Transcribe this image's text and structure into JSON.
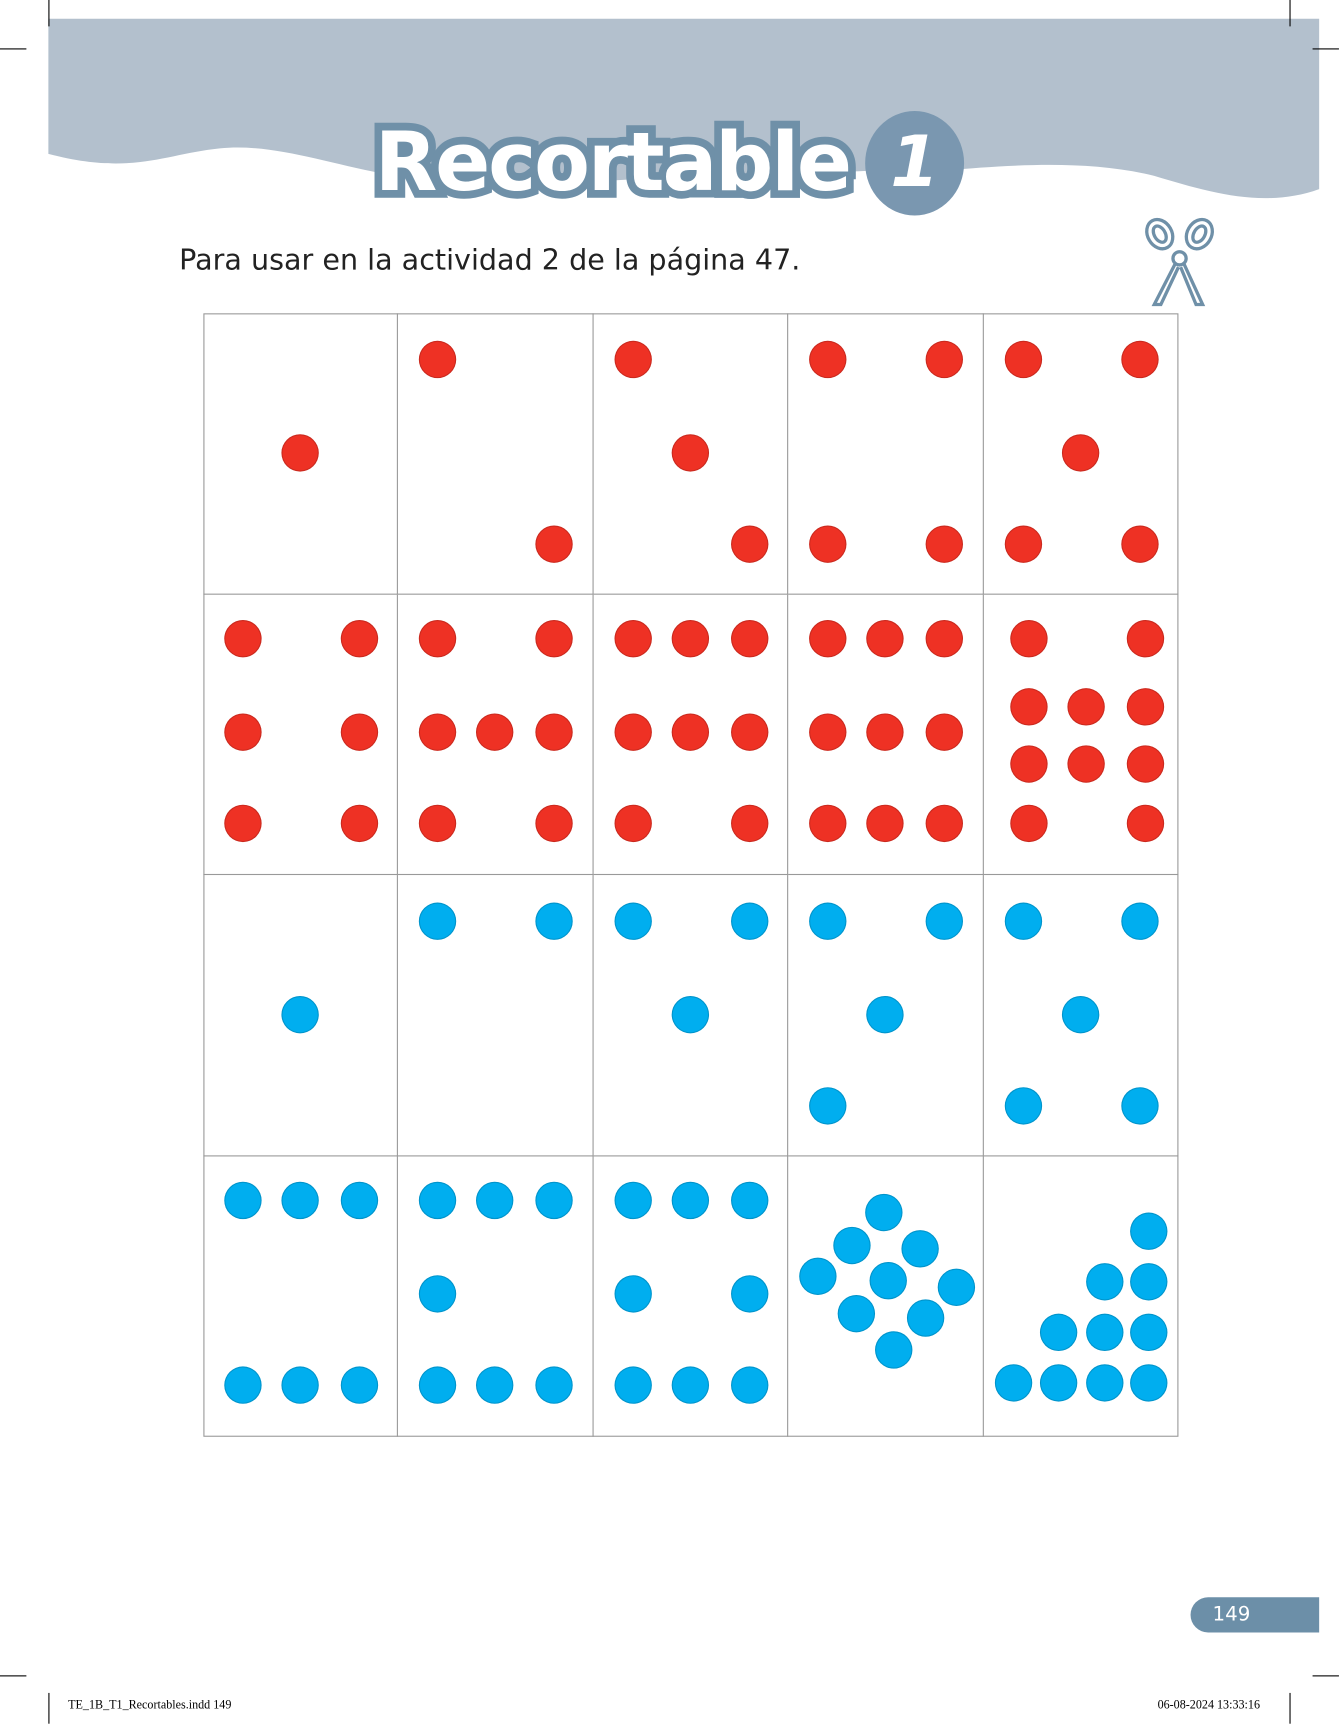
{
  "header": {
    "title": "Recortable",
    "number": "1",
    "instruction": "Para usar en la actividad 2 de la página 47."
  },
  "colors": {
    "red": "#ee3124",
    "blue": "#00aeef",
    "band": "#b3c0cd",
    "accent": "#6f90a8"
  },
  "cards": [
    {
      "color": "red",
      "count": 1
    },
    {
      "color": "red",
      "count": 2
    },
    {
      "color": "red",
      "count": 3
    },
    {
      "color": "red",
      "count": 4
    },
    {
      "color": "red",
      "count": 5
    },
    {
      "color": "red",
      "count": 6
    },
    {
      "color": "red",
      "count": 7
    },
    {
      "color": "red",
      "count": 8
    },
    {
      "color": "red",
      "count": 9
    },
    {
      "color": "red",
      "count": 10
    },
    {
      "color": "blue",
      "count": 1
    },
    {
      "color": "blue",
      "count": 2
    },
    {
      "color": "blue",
      "count": 3
    },
    {
      "color": "blue",
      "count": 4
    },
    {
      "color": "blue",
      "count": 5
    },
    {
      "color": "blue",
      "count": 6
    },
    {
      "color": "blue",
      "count": 7
    },
    {
      "color": "blue",
      "count": 8
    },
    {
      "color": "blue",
      "count": 9
    },
    {
      "color": "blue",
      "count": 10
    }
  ],
  "footer": {
    "page_number": "149",
    "file_slug": "TE_1B_T1_Recortables.indd   149",
    "timestamp": "06-08-2024   13:33:16"
  }
}
